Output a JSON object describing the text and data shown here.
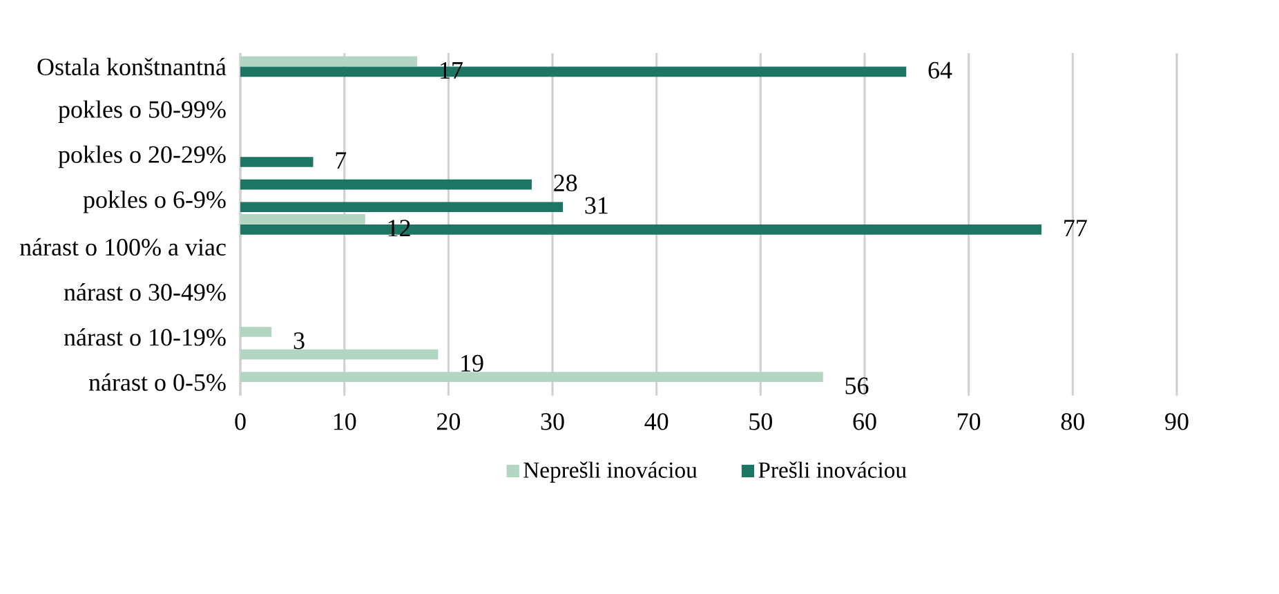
{
  "chart_data": {
    "type": "bar",
    "orientation": "horizontal",
    "categories": [
      "Ostala konštnantná",
      null,
      "pokles o 50-99%",
      null,
      "pokles o 20-29%",
      null,
      "pokles o 6-9%",
      null,
      "nárast o 100% a viac",
      null,
      "nárast o 30-49%",
      null,
      "nárast o 10-19%",
      null,
      "nárast o 0-5%"
    ],
    "series": [
      {
        "name": "Neprešli inováciou",
        "color": "#b3d6c2",
        "values": [
          17,
          null,
          null,
          null,
          null,
          null,
          null,
          12,
          null,
          null,
          null,
          null,
          3,
          19,
          56
        ]
      },
      {
        "name": "Prešli inováciou",
        "color": "#1f7563",
        "values": [
          64,
          null,
          null,
          null,
          7,
          28,
          31,
          77,
          null,
          null,
          null,
          null,
          null,
          null,
          null
        ]
      }
    ],
    "xlim": [
      0,
      90
    ],
    "xticks": [
      0,
      10,
      20,
      30,
      40,
      50,
      60,
      70,
      80,
      90
    ],
    "grid": "x",
    "legend": "bottom",
    "data_labels": true
  }
}
